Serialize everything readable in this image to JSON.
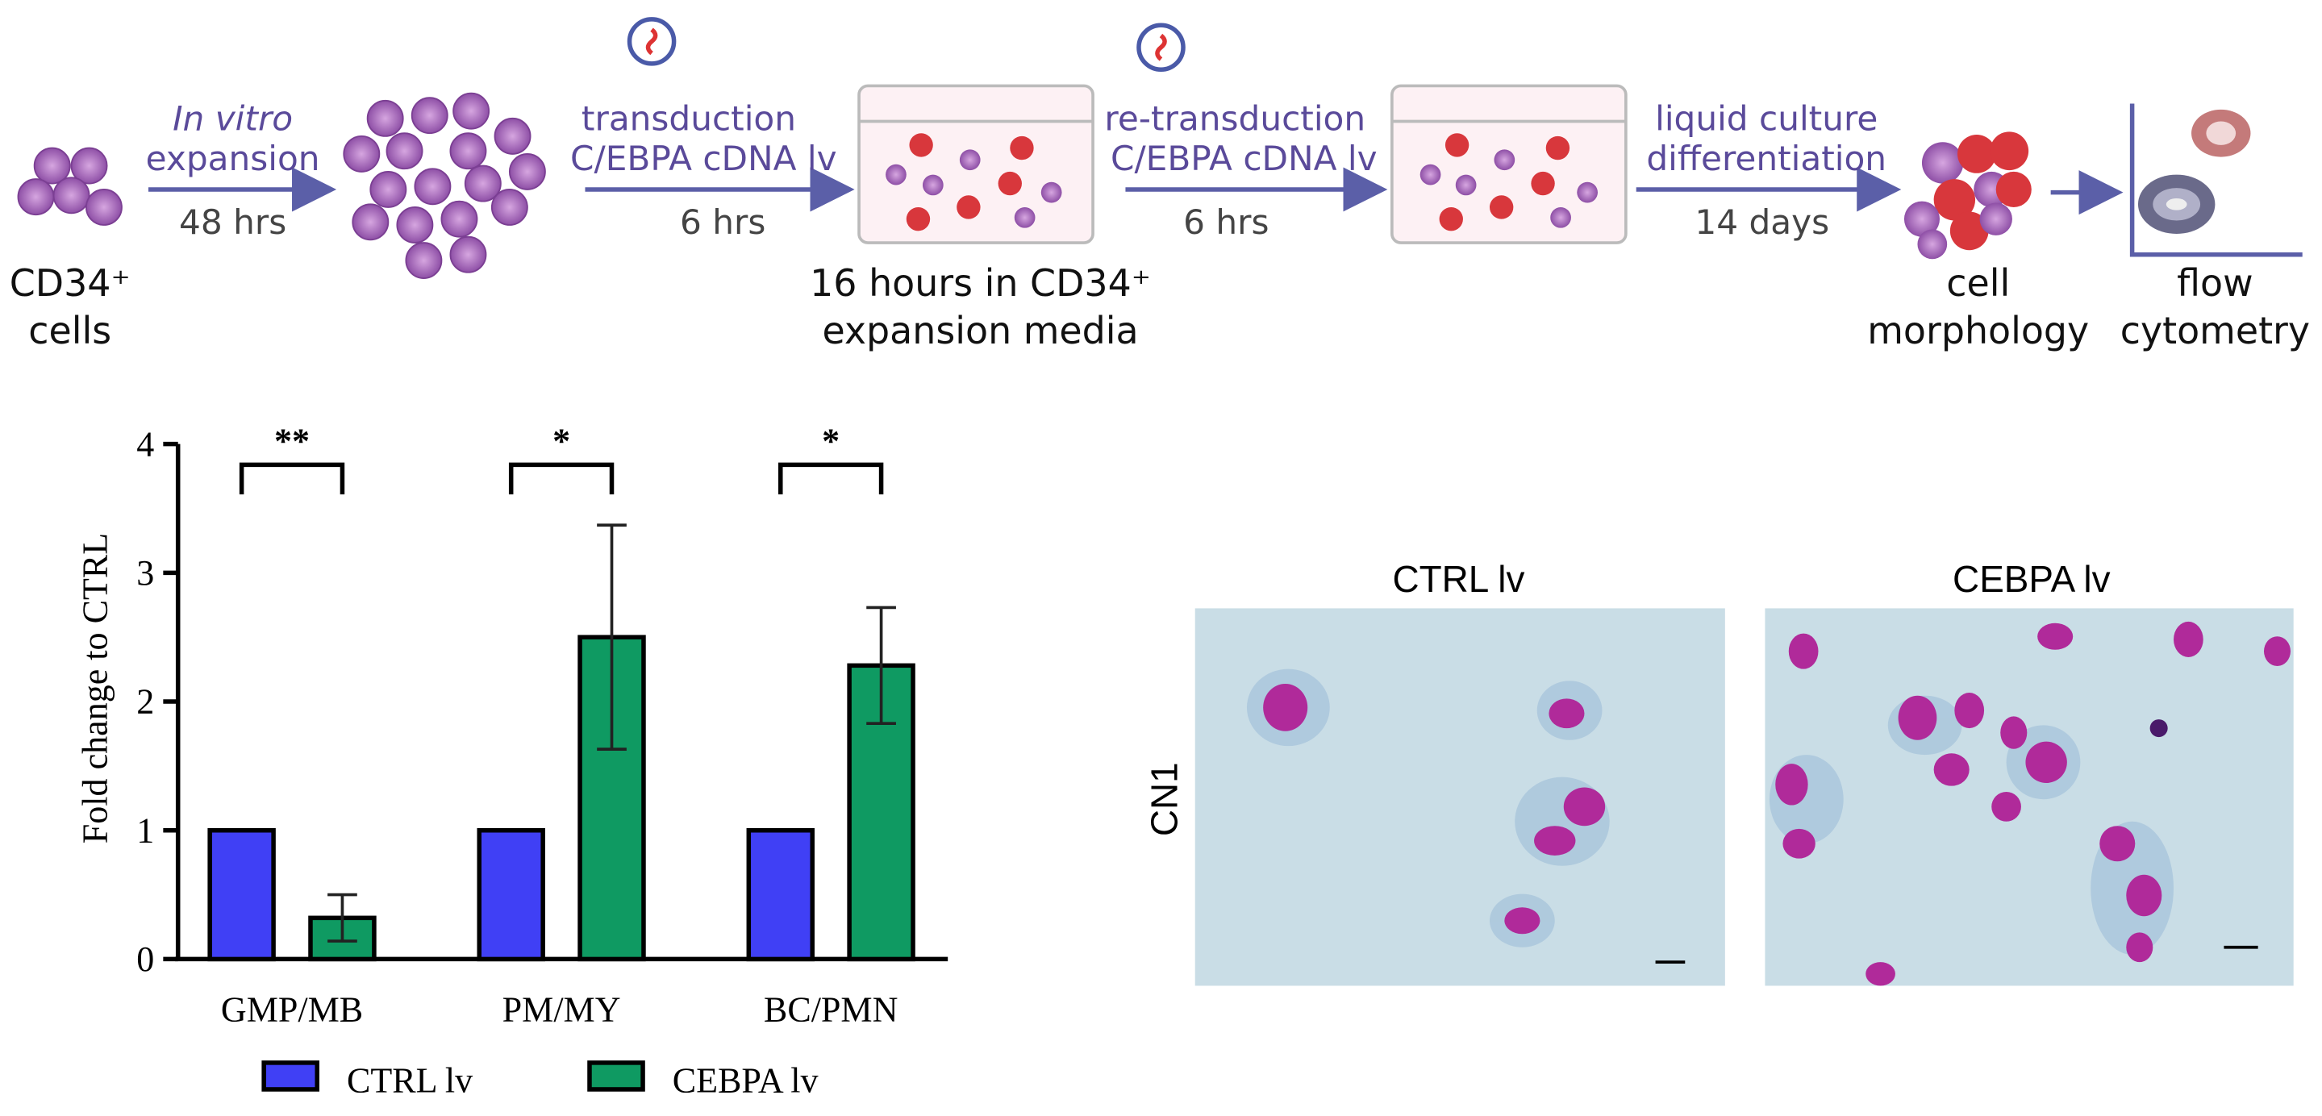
{
  "workflow": {
    "start": [
      "CD34⁺",
      "cells"
    ],
    "arrow1": {
      "top": [
        "In vitro",
        "expansion"
      ],
      "bottom": "48 hrs"
    },
    "arrow2": {
      "top": [
        "transduction",
        "C/EBPA cDNA  lv"
      ],
      "bottom": "6 hrs"
    },
    "dish_caption": [
      "16 hours in CD34⁺",
      "expansion media"
    ],
    "arrow3": {
      "top": [
        "re-transduction",
        "C/EBPA cDNA  lv"
      ],
      "bottom": "6 hrs"
    },
    "arrow4": {
      "top": [
        "liquid culture",
        "differentiation"
      ],
      "bottom": "14 days"
    },
    "readouts": [
      [
        "cell",
        "morphology"
      ],
      [
        "flow",
        "cytometry"
      ]
    ]
  },
  "micrographs": {
    "columns": [
      "CTRL lv",
      "CEBPA lv"
    ],
    "row": "CN1"
  },
  "chart_data": {
    "type": "bar",
    "ylabel": "Fold change to CTRL",
    "categories": [
      "GMP/MB",
      "PM/MY",
      "BC/PMN"
    ],
    "series": [
      {
        "name": "CTRL lv",
        "color": "#4040f5",
        "values": [
          1,
          1,
          1
        ]
      },
      {
        "name": "CEBPA lv",
        "color": "#0f9a62",
        "values": [
          0.32,
          2.5,
          2.28
        ],
        "errors": [
          0.18,
          0.87,
          0.45
        ]
      }
    ],
    "significance": [
      "**",
      "*",
      "*"
    ],
    "ylim": [
      0,
      4
    ],
    "yticks": [
      0,
      1,
      2,
      3,
      4
    ],
    "legend": "bottom"
  }
}
